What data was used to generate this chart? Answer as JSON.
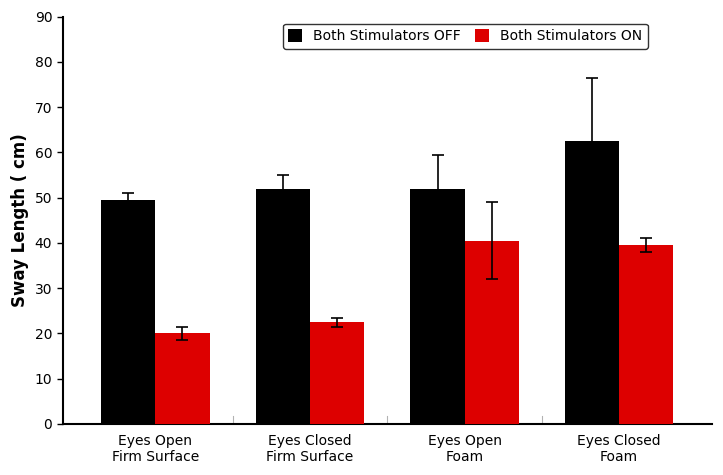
{
  "categories": [
    "Eyes Open\nFirm Surface",
    "Eyes Closed\nFirm Surface",
    "Eyes Open\nFoam",
    "Eyes Closed\nFoam"
  ],
  "off_values": [
    49.5,
    52.0,
    52.0,
    62.5
  ],
  "on_values": [
    20.0,
    22.5,
    40.5,
    39.5
  ],
  "off_errors": [
    1.5,
    3.0,
    7.5,
    14.0
  ],
  "on_errors": [
    1.5,
    1.0,
    8.5,
    1.5
  ],
  "off_color": "#000000",
  "on_color": "#dd0000",
  "ylabel": "Sway Length ( cm)",
  "ylim": [
    0,
    90
  ],
  "yticks": [
    0,
    10,
    20,
    30,
    40,
    50,
    60,
    70,
    80,
    90
  ],
  "legend_off": "Both Stimulators OFF",
  "legend_on": "Both Stimulators ON",
  "background_color": "#ffffff",
  "bar_width": 0.35,
  "error_capsize": 4,
  "error_linewidth": 1.2,
  "label_fontsize": 12,
  "tick_fontsize": 10,
  "legend_fontsize": 10
}
